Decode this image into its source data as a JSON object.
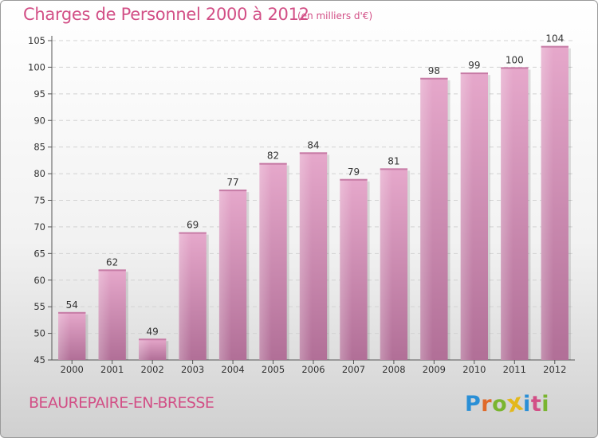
{
  "chart_data": {
    "type": "bar",
    "title": "Charges de Personnel 2000 à 2012",
    "subtitle": "(en milliers d'€)",
    "categories": [
      "2000",
      "2001",
      "2002",
      "2003",
      "2004",
      "2005",
      "2006",
      "2007",
      "2008",
      "2009",
      "2010",
      "2011",
      "2012"
    ],
    "values": [
      54,
      62,
      49,
      69,
      77,
      82,
      84,
      79,
      81,
      98,
      99,
      100,
      104
    ],
    "ylim": [
      45,
      105
    ],
    "yticks": [
      45,
      50,
      55,
      60,
      65,
      70,
      75,
      80,
      85,
      90,
      95,
      100,
      105
    ],
    "grid": true,
    "bar_color": "#d98db5",
    "xlabel": "",
    "ylabel": ""
  },
  "location": "BEAUREPAIRE-EN-BRESSE",
  "logo": {
    "text": "Proxiti",
    "letters": [
      {
        "ch": "P",
        "color": "#2a8fd6"
      },
      {
        "ch": "r",
        "color": "#e06a2a"
      },
      {
        "ch": "o",
        "color": "#7ab530"
      },
      {
        "ch": "x",
        "color": "#e3b81c"
      },
      {
        "ch": "i",
        "color": "#2a8fd6"
      },
      {
        "ch": "t",
        "color": "#d24f86"
      },
      {
        "ch": "i",
        "color": "#7ab530"
      }
    ]
  }
}
